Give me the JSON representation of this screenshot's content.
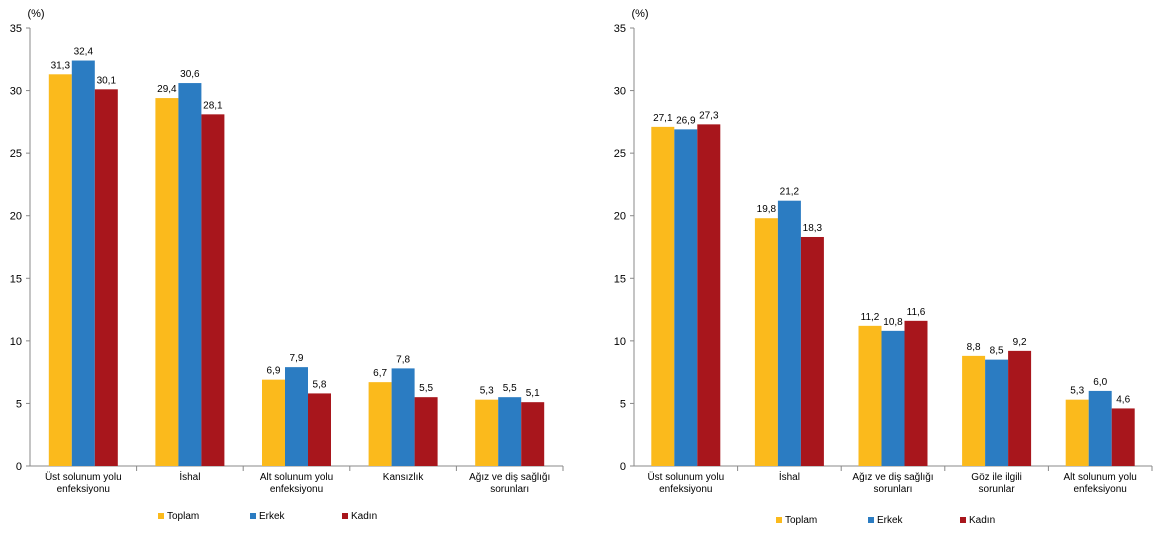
{
  "chart_data": [
    {
      "type": "bar",
      "ylabel": "(%)",
      "ylim": [
        0,
        35
      ],
      "yticks": [
        0,
        5,
        10,
        15,
        20,
        25,
        30,
        35
      ],
      "categories": [
        [
          "Üst solunum yolu",
          "enfeksiyonu"
        ],
        [
          "İshal"
        ],
        [
          "Alt solunum yolu",
          "enfeksiyonu"
        ],
        [
          "Kansızlık"
        ],
        [
          "Ağız ve diş sağlığı",
          "sorunları"
        ]
      ],
      "series": [
        {
          "name": "Toplam",
          "color": "#FBBA1C",
          "values": [
            31.3,
            29.4,
            6.9,
            6.7,
            5.3
          ],
          "labels": [
            "31,3",
            "29,4",
            "6,9",
            "6,7",
            "5,3"
          ]
        },
        {
          "name": "Erkek",
          "color": "#2B7CC2",
          "values": [
            32.4,
            30.6,
            7.9,
            7.8,
            5.5
          ],
          "labels": [
            "32,4",
            "30,6",
            "7,9",
            "7,8",
            "5,5"
          ]
        },
        {
          "name": "Kadın",
          "color": "#A8161C",
          "values": [
            30.1,
            28.1,
            5.8,
            5.5,
            5.1
          ],
          "labels": [
            "30,1",
            "28,1",
            "5,8",
            "5,5",
            "5,1"
          ]
        }
      ],
      "grid": false,
      "legend": "bottom"
    },
    {
      "type": "bar",
      "ylabel": "(%)",
      "ylim": [
        0,
        35
      ],
      "yticks": [
        0,
        5,
        10,
        15,
        20,
        25,
        30,
        35
      ],
      "categories": [
        [
          "Üst solunum yolu",
          "enfeksiyonu"
        ],
        [
          "İshal"
        ],
        [
          "Ağız ve diş sağlığı",
          "sorunları"
        ],
        [
          "Göz ile ilgili",
          "sorunlar"
        ],
        [
          "Alt solunum yolu",
          "enfeksiyonu"
        ]
      ],
      "series": [
        {
          "name": "Toplam",
          "color": "#FBBA1C",
          "values": [
            27.1,
            19.8,
            11.2,
            8.8,
            5.3
          ],
          "labels": [
            "27,1",
            "19,8",
            "11,2",
            "8,8",
            "5,3"
          ]
        },
        {
          "name": "Erkek",
          "color": "#2B7CC2",
          "values": [
            26.9,
            21.2,
            10.8,
            8.5,
            6.0
          ],
          "labels": [
            "26,9",
            "21,2",
            "10,8",
            "8,5",
            "6,0"
          ]
        },
        {
          "name": "Kadın",
          "color": "#A8161C",
          "values": [
            27.3,
            18.3,
            11.6,
            9.2,
            4.6
          ],
          "labels": [
            "27,3",
            "18,3",
            "11,6",
            "9,2",
            "4,6"
          ]
        }
      ],
      "grid": false,
      "legend": "bottom"
    }
  ]
}
